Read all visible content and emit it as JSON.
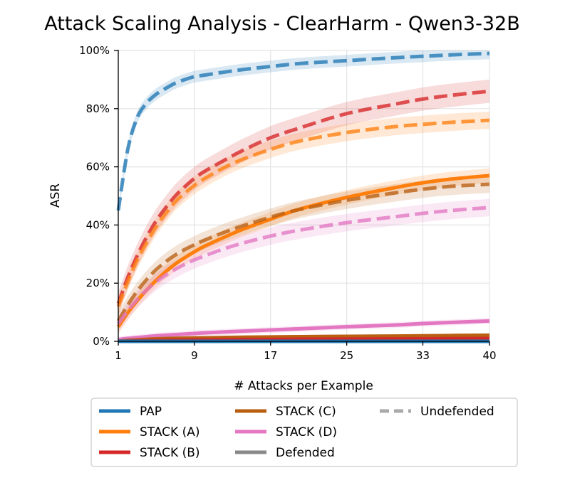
{
  "chart_data": {
    "type": "line",
    "title": "Attack Scaling Analysis - ClearHarm - Qwen3-32B",
    "xlabel": "# Attacks per Example",
    "ylabel": "ASR",
    "xlim": [
      1,
      40
    ],
    "ylim": [
      0,
      100
    ],
    "xticks": [
      1,
      9,
      17,
      25,
      33,
      40
    ],
    "yticks": [
      0,
      20,
      40,
      60,
      80,
      100
    ],
    "ytick_labels": [
      "0%",
      "20%",
      "40%",
      "60%",
      "80%",
      "100%"
    ],
    "grid": true,
    "legend_position": "bottom",
    "colors": {
      "PAP": "#1f77b4",
      "STACK (A)": "#ff7f0e",
      "STACK (B)": "#d62728",
      "STACK (C)": "#b85f12",
      "STACK (D)": "#e377c2",
      "style_key": "#888888"
    },
    "x": [
      1,
      2,
      3,
      4,
      5,
      6,
      7,
      8,
      9,
      10,
      12,
      14,
      17,
      20,
      25,
      30,
      33,
      36,
      40
    ],
    "series": [
      {
        "name": "PAP",
        "style": "dashed",
        "defended": false,
        "band": 2,
        "values": [
          45,
          66,
          77,
          82,
          85,
          87,
          88.8,
          90,
          91,
          91.5,
          92.5,
          93.4,
          94.5,
          95.5,
          96.5,
          97.5,
          98,
          98.5,
          99
        ]
      },
      {
        "name": "STACK (B)",
        "style": "dashed",
        "defended": false,
        "band": 4,
        "values": [
          13,
          22,
          29.5,
          36,
          41.5,
          46,
          50,
          53.2,
          56,
          58.3,
          62,
          65.5,
          70,
          73.3,
          78.3,
          81.5,
          83.3,
          84.6,
          86
        ]
      },
      {
        "name": "STACK (A)",
        "style": "dashed",
        "defended": false,
        "band": 3,
        "values": [
          12,
          20.5,
          28,
          34,
          39.5,
          44,
          48,
          51,
          53.6,
          55.8,
          59.5,
          62.5,
          66,
          68.8,
          71.8,
          73.8,
          74.6,
          75.3,
          76
        ]
      },
      {
        "name": "STACK (A)",
        "style": "solid",
        "defended": true,
        "band": 2.5,
        "values": [
          5,
          9.8,
          14,
          17.7,
          21,
          24,
          26.6,
          28.8,
          30.8,
          32.6,
          35.6,
          38.4,
          42,
          45.4,
          49.5,
          52.8,
          54.5,
          55.8,
          57
        ]
      },
      {
        "name": "STACK (C)",
        "style": "dashed",
        "defended": false,
        "band": 3,
        "values": [
          7,
          12.5,
          17.3,
          21.3,
          24.7,
          27.4,
          29.7,
          31.6,
          33.2,
          34.7,
          37.3,
          39.6,
          42.7,
          45.3,
          48.5,
          51,
          52.3,
          53.3,
          54
        ]
      },
      {
        "name": "STACK (D)",
        "style": "dashed",
        "defended": false,
        "band": 3,
        "values": [
          6,
          10.5,
          14.4,
          17.7,
          20.5,
          22.8,
          24.8,
          26.5,
          28,
          29.3,
          31.7,
          33.7,
          36.2,
          38.2,
          40.8,
          42.8,
          44,
          45,
          46
        ]
      },
      {
        "name": "STACK (D)",
        "style": "solid",
        "defended": true,
        "band": 1,
        "values": [
          0.6,
          1,
          1.3,
          1.6,
          1.9,
          2.1,
          2.3,
          2.5,
          2.7,
          2.9,
          3.2,
          3.5,
          3.9,
          4.3,
          5,
          5.6,
          6.1,
          6.5,
          7
        ]
      },
      {
        "name": "STACK (C)",
        "style": "solid",
        "defended": true,
        "band": 0.6,
        "values": [
          0,
          0.3,
          0.5,
          0.7,
          0.85,
          0.95,
          1.05,
          1.1,
          1.15,
          1.2,
          1.3,
          1.4,
          1.5,
          1.6,
          1.7,
          1.8,
          1.9,
          2,
          2.1
        ]
      },
      {
        "name": "STACK (B)",
        "style": "solid",
        "defended": true,
        "band": 0.3,
        "values": [
          0,
          0.1,
          0.2,
          0.25,
          0.3,
          0.35,
          0.4,
          0.45,
          0.5,
          0.5,
          0.55,
          0.6,
          0.65,
          0.7,
          0.75,
          0.8,
          0.85,
          0.9,
          0.95
        ]
      },
      {
        "name": "PAP",
        "style": "solid",
        "defended": true,
        "band": 0.2,
        "values": [
          0,
          0,
          0,
          0,
          0,
          0,
          0,
          0,
          0,
          0,
          0,
          0,
          0,
          0,
          0,
          0,
          0,
          0,
          0
        ]
      }
    ],
    "legend": [
      {
        "label": "PAP",
        "kind": "color",
        "color": "#1f77b4"
      },
      {
        "label": "STACK (A)",
        "kind": "color",
        "color": "#ff7f0e"
      },
      {
        "label": "STACK (B)",
        "kind": "color",
        "color": "#d62728"
      },
      {
        "label": "STACK (C)",
        "kind": "color",
        "color": "#b85f12"
      },
      {
        "label": "STACK (D)",
        "kind": "color",
        "color": "#e377c2"
      },
      {
        "label": "Defended",
        "kind": "solid",
        "color": "#888888"
      },
      {
        "label": "Undefended",
        "kind": "dashed",
        "color": "#aaaaaa"
      }
    ]
  }
}
